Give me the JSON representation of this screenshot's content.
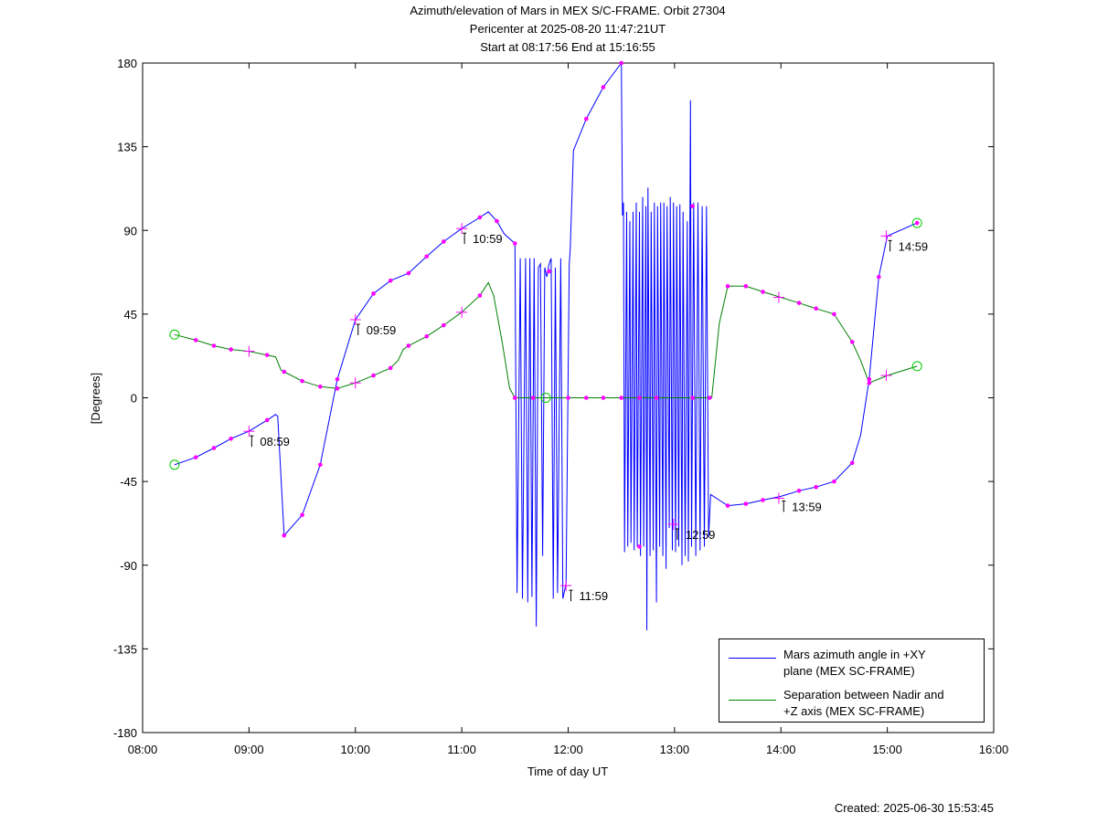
{
  "chart_data": {
    "type": "line",
    "title": "Azimuth/elevation of Mars in MEX S/C-FRAME.  Orbit 27304",
    "subtitle": "Pericenter at 2025-08-20 11:47:21UT",
    "subtitle2": "Start at 08:17:56 End at 15:16:55",
    "xlabel": "Time of day UT",
    "ylabel": "[Degrees]",
    "footer": "Created: 2025-06-30 15:53:45",
    "xlim": [
      8,
      16
    ],
    "ylim": [
      -180,
      180
    ],
    "xticks": [
      {
        "value": 8,
        "label": "08:00"
      },
      {
        "value": 9,
        "label": "09:00"
      },
      {
        "value": 10,
        "label": "10:00"
      },
      {
        "value": 11,
        "label": "11:00"
      },
      {
        "value": 12,
        "label": "12:00"
      },
      {
        "value": 13,
        "label": "13:00"
      },
      {
        "value": 14,
        "label": "14:00"
      },
      {
        "value": 15,
        "label": "15:00"
      },
      {
        "value": 16,
        "label": "16:00"
      }
    ],
    "yticks": [
      -180,
      -135,
      -90,
      -45,
      0,
      45,
      90,
      135,
      180
    ],
    "grid": false,
    "legend": "lower right",
    "series": [
      {
        "name": "Mars azimuth angle in +XY plane (MEX SC-FRAME)",
        "color": "#0000ff",
        "x": [
          8.3,
          8.5,
          8.67,
          8.83,
          9.0,
          9.17,
          9.25,
          9.27,
          9.33,
          9.5,
          9.67,
          9.83,
          10.0,
          10.17,
          10.33,
          10.5,
          10.67,
          10.83,
          11.0,
          11.17,
          11.25,
          11.33,
          11.4,
          11.5,
          11.52,
          11.55,
          11.57,
          11.6,
          11.62,
          11.64,
          11.66,
          11.68,
          11.7,
          11.72,
          11.74,
          11.76,
          11.78,
          11.8,
          11.82,
          11.84,
          11.86,
          11.88,
          11.9,
          11.93,
          11.95,
          11.98,
          12.01,
          12.02,
          12.05,
          12.17,
          12.33,
          12.5,
          12.51,
          12.52,
          12.53,
          12.55,
          12.56,
          12.58,
          12.59,
          12.61,
          12.62,
          12.64,
          12.65,
          12.67,
          12.68,
          12.7,
          12.71,
          12.73,
          12.74,
          12.75,
          12.77,
          12.78,
          12.8,
          12.81,
          12.83,
          12.84,
          12.86,
          12.87,
          12.89,
          12.9,
          12.92,
          12.93,
          12.95,
          12.96,
          12.98,
          12.99,
          13.01,
          13.02,
          13.04,
          13.05,
          13.07,
          13.08,
          13.1,
          13.12,
          13.13,
          13.15,
          13.16,
          13.18,
          13.2,
          13.22,
          13.24,
          13.26,
          13.28,
          13.3,
          13.32,
          13.34,
          13.42,
          13.5,
          13.67,
          13.83,
          14.0,
          14.17,
          14.33,
          14.5,
          14.67,
          14.75,
          14.83,
          14.92,
          15.0,
          15.28
        ],
        "values": [
          -36,
          -32,
          -27,
          -22,
          -18,
          -12,
          -9,
          -10,
          -74,
          -63,
          -36,
          10,
          42,
          56,
          63,
          67,
          76,
          84,
          91,
          97,
          100,
          95,
          88,
          83,
          -105,
          75,
          -108,
          75,
          -110,
          75,
          -107,
          75,
          -123,
          70,
          72,
          -85,
          70,
          65,
          72,
          75,
          -108,
          70,
          -105,
          75,
          -108,
          -100,
          72,
          80,
          133,
          150,
          167,
          180,
          98,
          105,
          -83,
          100,
          -80,
          95,
          -78,
          100,
          -82,
          105,
          -80,
          100,
          -85,
          108,
          -80,
          103,
          -125,
          113,
          -85,
          100,
          -82,
          105,
          -110,
          103,
          -80,
          105,
          -85,
          105,
          -92,
          103,
          -70,
          108,
          -82,
          105,
          -83,
          103,
          -80,
          104,
          -90,
          100,
          -85,
          95,
          -88,
          160,
          -80,
          105,
          -85,
          105,
          -82,
          103,
          -80,
          103,
          -75,
          -52,
          -55,
          -58,
          -57,
          -55,
          -53,
          -50,
          -48,
          -45,
          -35,
          -20,
          10,
          65,
          87,
          94
        ]
      },
      {
        "name": "Separation between Nadir and +Z axis (MEX SC-FRAME)",
        "color": "#008000",
        "x": [
          8.3,
          8.5,
          8.67,
          8.83,
          9.0,
          9.17,
          9.25,
          9.3,
          9.33,
          9.5,
          9.67,
          9.83,
          10.0,
          10.17,
          10.33,
          10.4,
          10.45,
          10.5,
          10.67,
          10.83,
          11.0,
          11.17,
          11.25,
          11.3,
          11.38,
          11.45,
          11.5,
          13.35,
          13.42,
          13.5,
          13.67,
          13.83,
          14.0,
          14.17,
          14.33,
          14.5,
          14.67,
          14.75,
          14.83,
          15.0,
          15.28
        ],
        "values": [
          34,
          31,
          28,
          26,
          25,
          23,
          22,
          15,
          14,
          9,
          6,
          5,
          8,
          12,
          16,
          20,
          26,
          28,
          33,
          39,
          46,
          55,
          62,
          55,
          30,
          5,
          0,
          0,
          40,
          60,
          60,
          57,
          54,
          51,
          48,
          45,
          30,
          20,
          8,
          12,
          17
        ]
      }
    ],
    "markers": [
      {
        "symbol": "dot",
        "color": "#ff00ff",
        "x": [
          8.5,
          8.67,
          8.83,
          9.17,
          9.33,
          9.5,
          9.67,
          9.83,
          10.17,
          10.33,
          10.5,
          10.67,
          10.83,
          11.17,
          11.33,
          11.5,
          11.82,
          12.17,
          12.33,
          12.5,
          12.67,
          13.17,
          13.5,
          13.67,
          13.83,
          14.17,
          14.33,
          14.5,
          14.67,
          14.83,
          14.92,
          15.28
        ],
        "values": [
          -32,
          -27,
          -22,
          -12,
          -74,
          -63,
          -36,
          10,
          56,
          63,
          67,
          76,
          84,
          97,
          95,
          83,
          68,
          150,
          167,
          180,
          -80,
          103,
          -58,
          -57,
          -55,
          -50,
          -48,
          -45,
          -35,
          10,
          65,
          94
        ]
      },
      {
        "symbol": "dot",
        "color": "#ff00ff",
        "x": [
          8.5,
          8.67,
          8.83,
          9.17,
          9.33,
          9.5,
          9.67,
          9.83,
          10.17,
          10.33,
          10.5,
          10.67,
          10.83,
          11.17,
          11.5,
          11.67,
          12.0,
          12.17,
          12.33,
          12.5,
          12.67,
          12.83,
          13.17,
          13.33,
          13.5,
          13.67,
          13.83,
          14.17,
          14.33,
          14.5,
          14.67,
          14.83
        ],
        "values": [
          31,
          28,
          26,
          23,
          14,
          9,
          6,
          5,
          12,
          16,
          28,
          33,
          39,
          55,
          0,
          0,
          0,
          0,
          0,
          0,
          0,
          0,
          0,
          0,
          60,
          60,
          57,
          51,
          48,
          45,
          30,
          8
        ]
      },
      {
        "symbol": "cross",
        "color": "#ff00ff",
        "x": [
          9.0,
          10.0,
          11.0,
          11.98,
          12.99,
          13.98,
          14.99,
          9.0,
          10.0,
          11.0,
          13.98,
          14.99
        ],
        "values": [
          -18,
          42,
          91,
          -101,
          -68,
          -54,
          87,
          25,
          8,
          46,
          54,
          12
        ]
      },
      {
        "symbol": "circle",
        "color": "#00cc00",
        "x": [
          8.3,
          8.3,
          11.79,
          15.28,
          15.28
        ],
        "values": [
          -36,
          34,
          0,
          94,
          17
        ]
      }
    ],
    "annotations": [
      {
        "text": "08:59",
        "x": 9.0,
        "y": -18
      },
      {
        "text": "09:59",
        "x": 10.0,
        "y": 42
      },
      {
        "text": "10:59",
        "x": 11.0,
        "y": 91
      },
      {
        "text": "11:59",
        "x": 12.0,
        "y": -101
      },
      {
        "text": "12:59",
        "x": 13.0,
        "y": -68
      },
      {
        "text": "13:59",
        "x": 14.0,
        "y": -53
      },
      {
        "text": "14:59",
        "x": 15.0,
        "y": 87
      }
    ]
  }
}
